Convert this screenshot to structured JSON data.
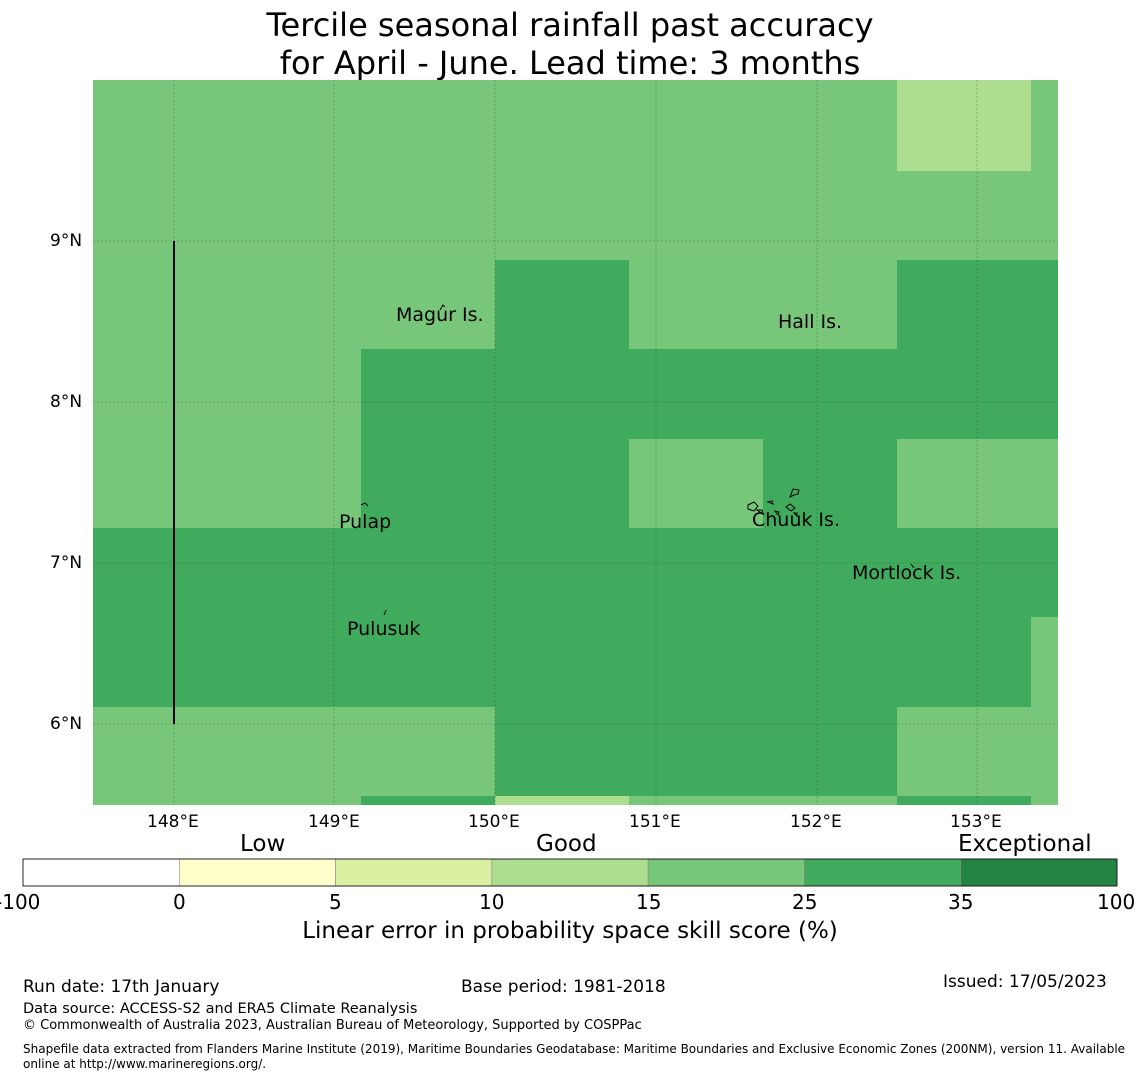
{
  "title": {
    "line1": "Tercile seasonal rainfall past accuracy",
    "line2": "for April - June. Lead time: 3 months"
  },
  "map": {
    "lon_range": [
      147.5,
      153.5
    ],
    "lat_range": [
      5.5,
      10.0
    ],
    "x_ticks": [
      "148°E",
      "149°E",
      "150°E",
      "151°E",
      "152°E",
      "153°E"
    ],
    "y_ticks": [
      "9°N",
      "8°N",
      "7°N",
      "6°N"
    ],
    "places": [
      "Magur Is.",
      "Hall Is.",
      "Pulap",
      "Chuuk Is.",
      "Mortlock Is.",
      "Pulusuk"
    ],
    "boundary_line": {
      "lon": 148.0,
      "lat_from": 6.0,
      "lat_to": 9.0
    }
  },
  "legend": {
    "categories": [
      "Low",
      "Good",
      "Exceptional"
    ],
    "ticks": [
      "-100",
      "0",
      "5",
      "10",
      "15",
      "25",
      "35",
      "100"
    ],
    "colors": [
      "#ffffff",
      "#ffffcc",
      "#d9f0a3",
      "#addd8e",
      "#78c679",
      "#41ab5d",
      "#238443"
    ],
    "label": "Linear error in probability space skill score (%)"
  },
  "footer": {
    "run_date": "Run date: 17th January",
    "base_period": "Base period: 1981-2018",
    "issued": "Issued: 17/05/2023",
    "data_source": "Data source: ACCESS-S2 and ERA5 Climate Reanalysis",
    "copyright": "© Commonwealth of Australia 2023, Australian Bureau of Meteorology, Supported by COSPPac",
    "shapefile_line1": "Shapefile data extracted from Flanders Marine Institute (2019), Maritime Boundaries Geodatabase: Maritime Boundaries and Exclusive Economic Zones (200NM), version 11. Available",
    "shapefile_line2": "online at http://www.marineregions.org/."
  }
}
